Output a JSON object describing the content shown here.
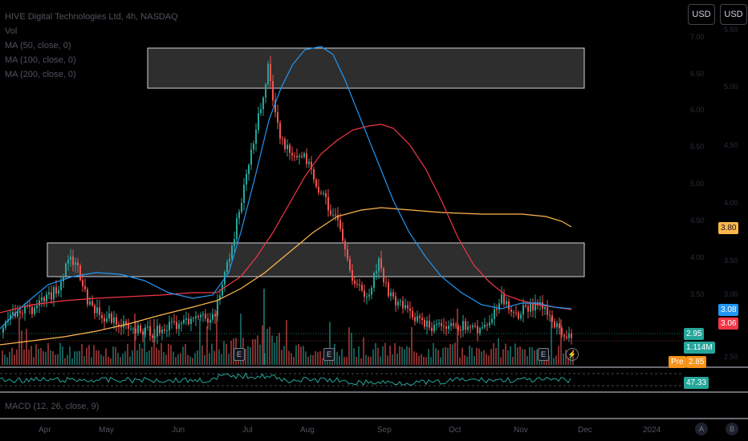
{
  "legend": {
    "title": "HIVE Digital Technologies Ltd, 4h, NASDAQ",
    "vol": "Vol",
    "ma50": "MA (50, close, 0)",
    "ma100": "MA (100, close, 0)",
    "ma200": "MA (200, close, 0)",
    "macd": "MACD (12, 26, close, 9)"
  },
  "currency_buttons": [
    "USD",
    "USD"
  ],
  "price_axis_outer": [
    "5.50",
    "5.00",
    "4.50",
    "4.00",
    "3.50",
    "3.00",
    "2.50"
  ],
  "price_axis_inner": [
    "7.00",
    "6.50",
    "6.00",
    "5.50",
    "5.00",
    "4.50",
    "4.00",
    "3.50"
  ],
  "price_tags": {
    "ma200": "3.80",
    "ma50": "3.08",
    "ma100": "3.06",
    "last": "2.95",
    "volume": "1.114M",
    "pre_label": "Pre",
    "pre_value": "2.85",
    "rsi": "47.33"
  },
  "time_axis": [
    "Apr",
    "May",
    "Jun",
    "Jul",
    "Aug",
    "Sep",
    "Oct",
    "Nov",
    "Dec",
    "2024"
  ],
  "earnings_badge": "E",
  "scale_buttons": [
    "A",
    "B"
  ],
  "colors": {
    "up": "#26a69a",
    "down": "#ef5350",
    "ma50": "#2196f3",
    "ma100": "#f23645",
    "ma200": "#ffb74d",
    "rsi": "#26a69a",
    "tag_last": "#26a69a",
    "tag_pre": "#f7931a"
  }
}
